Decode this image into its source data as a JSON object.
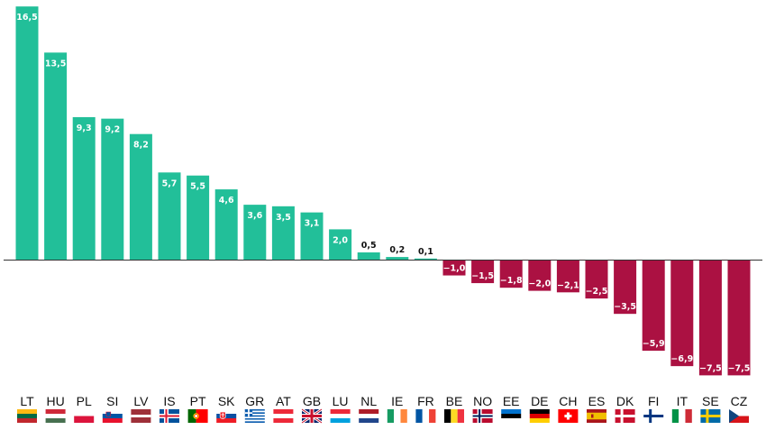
{
  "chart_data": {
    "type": "bar",
    "categories": [
      "LT",
      "HU",
      "PL",
      "SI",
      "LV",
      "IS",
      "PT",
      "SK",
      "GR",
      "AT",
      "GB",
      "LU",
      "NL",
      "IE",
      "FR",
      "BE",
      "NO",
      "EE",
      "DE",
      "CH",
      "ES",
      "DK",
      "FI",
      "IT",
      "SE",
      "CZ"
    ],
    "values": [
      16.5,
      13.5,
      9.3,
      9.2,
      8.2,
      5.7,
      5.5,
      4.6,
      3.6,
      3.5,
      3.1,
      2.0,
      0.5,
      0.2,
      0.1,
      -1.0,
      -1.5,
      -1.8,
      -2.0,
      -2.1,
      -2.5,
      -3.5,
      -5.9,
      -6.9,
      -7.5,
      -7.5
    ],
    "labels": [
      "16,5",
      "13,5",
      "9,3",
      "9,2",
      "8,2",
      "5,7",
      "5,5",
      "4,6",
      "3,6",
      "3,5",
      "3,1",
      "2,0",
      "0,5",
      "0,2",
      "0,1",
      "−1,0",
      "−1,5",
      "−1,8",
      "−2,0",
      "−2,1",
      "−2,5",
      "−3,5",
      "−5,9",
      "−6,9",
      "−7,5",
      "−7,5"
    ],
    "ylim": [
      -7.5,
      16.5
    ],
    "grid": false,
    "legend": "none",
    "title": "",
    "xlabel": "",
    "ylabel": "",
    "colors": {
      "positive": "#22bf99",
      "negative": "#ab1142",
      "axis": "#333333",
      "small_label": "#111111",
      "bar_label": "#ffffff"
    },
    "flags": [
      "lithuania-flag",
      "hungary-flag",
      "poland-flag",
      "slovenia-flag",
      "latvia-flag",
      "iceland-flag",
      "portugal-flag",
      "slovakia-flag",
      "greece-flag",
      "austria-flag",
      "united-kingdom-flag",
      "luxembourg-flag",
      "netherlands-flag",
      "ireland-flag",
      "france-flag",
      "belgium-flag",
      "norway-flag",
      "estonia-flag",
      "germany-flag",
      "switzerland-flag",
      "spain-flag",
      "denmark-flag",
      "finland-flag",
      "italy-flag",
      "sweden-flag",
      "czechia-flag"
    ]
  }
}
